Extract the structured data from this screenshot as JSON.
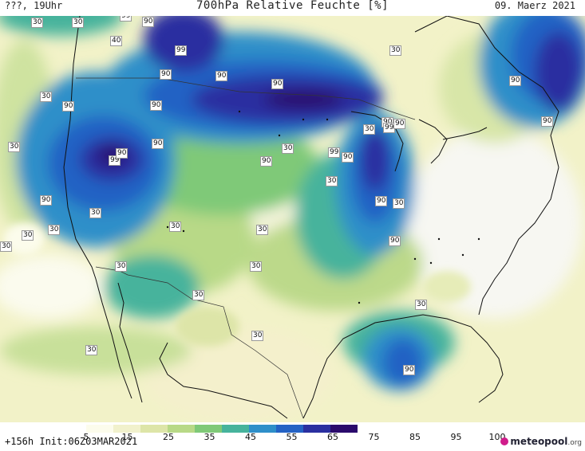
{
  "header": {
    "left": "???, 19Uhr",
    "title": "700hPa Relative Feuchte [%]",
    "right": "09. Maerz 2021"
  },
  "legend": {
    "labels": [
      "5",
      "15",
      "25",
      "35",
      "45",
      "55",
      "65",
      "75",
      "85",
      "95",
      "100"
    ],
    "colors": [
      "#f4f4f4",
      "#fcfcec",
      "#f1f1cc",
      "#dde5a8",
      "#b8d987",
      "#7fc978",
      "#46b39c",
      "#2e8fc9",
      "#2462c4",
      "#2a2fa0",
      "#2a0a6c"
    ]
  },
  "footer": {
    "run_info": "+156h Init:06Z03MAR2021",
    "logo_main": "meteopool",
    "logo_tld": ".org"
  },
  "contour_labels": [
    {
      "text": "30",
      "slot": "a1"
    },
    {
      "text": "30",
      "slot": "a2"
    },
    {
      "text": "99",
      "slot": "a3"
    },
    {
      "text": "90",
      "slot": "a4"
    },
    {
      "text": "40",
      "slot": "a5"
    },
    {
      "text": "99",
      "slot": "a6"
    },
    {
      "text": "90",
      "slot": "a7"
    },
    {
      "text": "30",
      "slot": "a8"
    },
    {
      "text": "90",
      "slot": "a9"
    },
    {
      "text": "90",
      "slot": "a10"
    },
    {
      "text": "90",
      "slot": "a11"
    },
    {
      "text": "30",
      "slot": "a12"
    },
    {
      "text": "90",
      "slot": "a13"
    },
    {
      "text": "90",
      "slot": "a14"
    },
    {
      "text": "90",
      "slot": "a15"
    },
    {
      "text": "99",
      "slot": "a16"
    },
    {
      "text": "90",
      "slot": "a17"
    },
    {
      "text": "90",
      "slot": "a18"
    },
    {
      "text": "30",
      "slot": "a19"
    },
    {
      "text": "99",
      "slot": "a20"
    },
    {
      "text": "90",
      "slot": "a21"
    },
    {
      "text": "30",
      "slot": "a22"
    },
    {
      "text": "30",
      "slot": "a23"
    },
    {
      "text": "90",
      "slot": "a24"
    },
    {
      "text": "90",
      "slot": "a25"
    },
    {
      "text": "99",
      "slot": "a26"
    },
    {
      "text": "90",
      "slot": "a27"
    },
    {
      "text": "30",
      "slot": "a28"
    },
    {
      "text": "90",
      "slot": "a29"
    },
    {
      "text": "90",
      "slot": "a30"
    },
    {
      "text": "30",
      "slot": "a31"
    },
    {
      "text": "30",
      "slot": "a32"
    },
    {
      "text": "30",
      "slot": "a33"
    },
    {
      "text": "30",
      "slot": "a34"
    },
    {
      "text": "30",
      "slot": "a35"
    },
    {
      "text": "30",
      "slot": "a36"
    },
    {
      "text": "30",
      "slot": "a37"
    },
    {
      "text": "90",
      "slot": "a38"
    },
    {
      "text": "30",
      "slot": "a39"
    },
    {
      "text": "30",
      "slot": "a40"
    },
    {
      "text": "30",
      "slot": "a41"
    },
    {
      "text": "30",
      "slot": "a42"
    },
    {
      "text": "90",
      "slot": "a43"
    },
    {
      "text": "30",
      "slot": "a44"
    },
    {
      "text": "30",
      "slot": "a45"
    }
  ]
}
